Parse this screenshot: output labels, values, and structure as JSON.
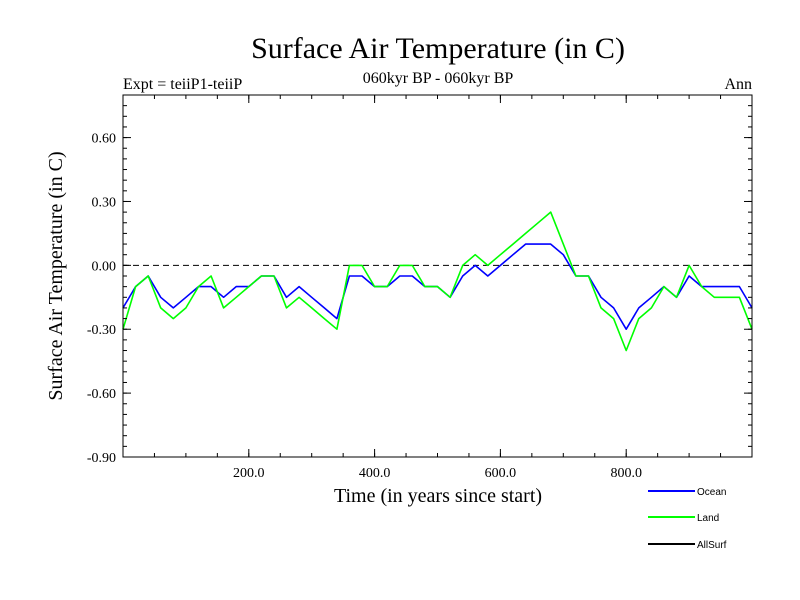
{
  "chart_data": {
    "type": "line",
    "title": "Surface Air Temperature (in C)",
    "subtitle_left": "Expt = teiiP1-teiiP",
    "subtitle_center": "060kyr BP - 060kyr BP",
    "subtitle_right": "Ann",
    "xlabel": "Time (in years since start)",
    "ylabel": "Surface Air Temperature (in C)",
    "xlim": [
      0,
      1000
    ],
    "ylim": [
      -0.9,
      0.8
    ],
    "xticks": [
      200,
      400,
      600,
      800
    ],
    "xtick_labels": [
      "200.0",
      "400.0",
      "600.0",
      "800.0"
    ],
    "yticks": [
      -0.9,
      -0.6,
      -0.3,
      0.0,
      0.3,
      0.6
    ],
    "ytick_labels": [
      "-0.90",
      "-0.60",
      "-0.30",
      "0.00",
      "0.30",
      "0.60"
    ],
    "zero_line": true,
    "legend_position": "bottom-right",
    "series": [
      {
        "name": "Ocean",
        "color": "#0000ff",
        "x": [
          0,
          20,
          40,
          60,
          80,
          100,
          120,
          140,
          160,
          180,
          200,
          220,
          240,
          260,
          280,
          300,
          320,
          340,
          360,
          380,
          400,
          420,
          440,
          460,
          480,
          500,
          520,
          540,
          560,
          580,
          600,
          620,
          640,
          660,
          680,
          700,
          720,
          740,
          760,
          780,
          800,
          820,
          840,
          860,
          880,
          900,
          920,
          940,
          960,
          980,
          1000
        ],
        "values": [
          -0.2,
          -0.1,
          -0.05,
          -0.15,
          -0.2,
          -0.15,
          -0.1,
          -0.1,
          -0.15,
          -0.1,
          -0.1,
          -0.05,
          -0.05,
          -0.15,
          -0.1,
          -0.15,
          -0.2,
          -0.25,
          -0.05,
          -0.05,
          -0.1,
          -0.1,
          -0.05,
          -0.05,
          -0.1,
          -0.1,
          -0.15,
          -0.05,
          0.0,
          -0.05,
          0.0,
          0.05,
          0.1,
          0.1,
          0.1,
          0.05,
          -0.05,
          -0.05,
          -0.15,
          -0.2,
          -0.3,
          -0.2,
          -0.15,
          -0.1,
          -0.15,
          -0.05,
          -0.1,
          -0.1,
          -0.1,
          -0.1,
          -0.2
        ]
      },
      {
        "name": "Land",
        "color": "#00ff00",
        "x": [
          0,
          20,
          40,
          60,
          80,
          100,
          120,
          140,
          160,
          180,
          200,
          220,
          240,
          260,
          280,
          300,
          320,
          340,
          360,
          380,
          400,
          420,
          440,
          460,
          480,
          500,
          520,
          540,
          560,
          580,
          600,
          620,
          640,
          660,
          680,
          700,
          720,
          740,
          760,
          780,
          800,
          820,
          840,
          860,
          880,
          900,
          920,
          940,
          960,
          980,
          1000
        ],
        "values": [
          -0.3,
          -0.1,
          -0.05,
          -0.2,
          -0.25,
          -0.2,
          -0.1,
          -0.05,
          -0.2,
          -0.15,
          -0.1,
          -0.05,
          -0.05,
          -0.2,
          -0.15,
          -0.2,
          -0.25,
          -0.3,
          0.0,
          0.0,
          -0.1,
          -0.1,
          0.0,
          0.0,
          -0.1,
          -0.1,
          -0.15,
          0.0,
          0.05,
          0.0,
          0.05,
          0.1,
          0.15,
          0.2,
          0.25,
          0.1,
          -0.05,
          -0.05,
          -0.2,
          -0.25,
          -0.4,
          -0.25,
          -0.2,
          -0.1,
          -0.15,
          0.0,
          -0.1,
          -0.15,
          -0.15,
          -0.15,
          -0.3
        ]
      },
      {
        "name": "AllSurf",
        "color": "#000000",
        "x": [],
        "values": []
      }
    ]
  }
}
